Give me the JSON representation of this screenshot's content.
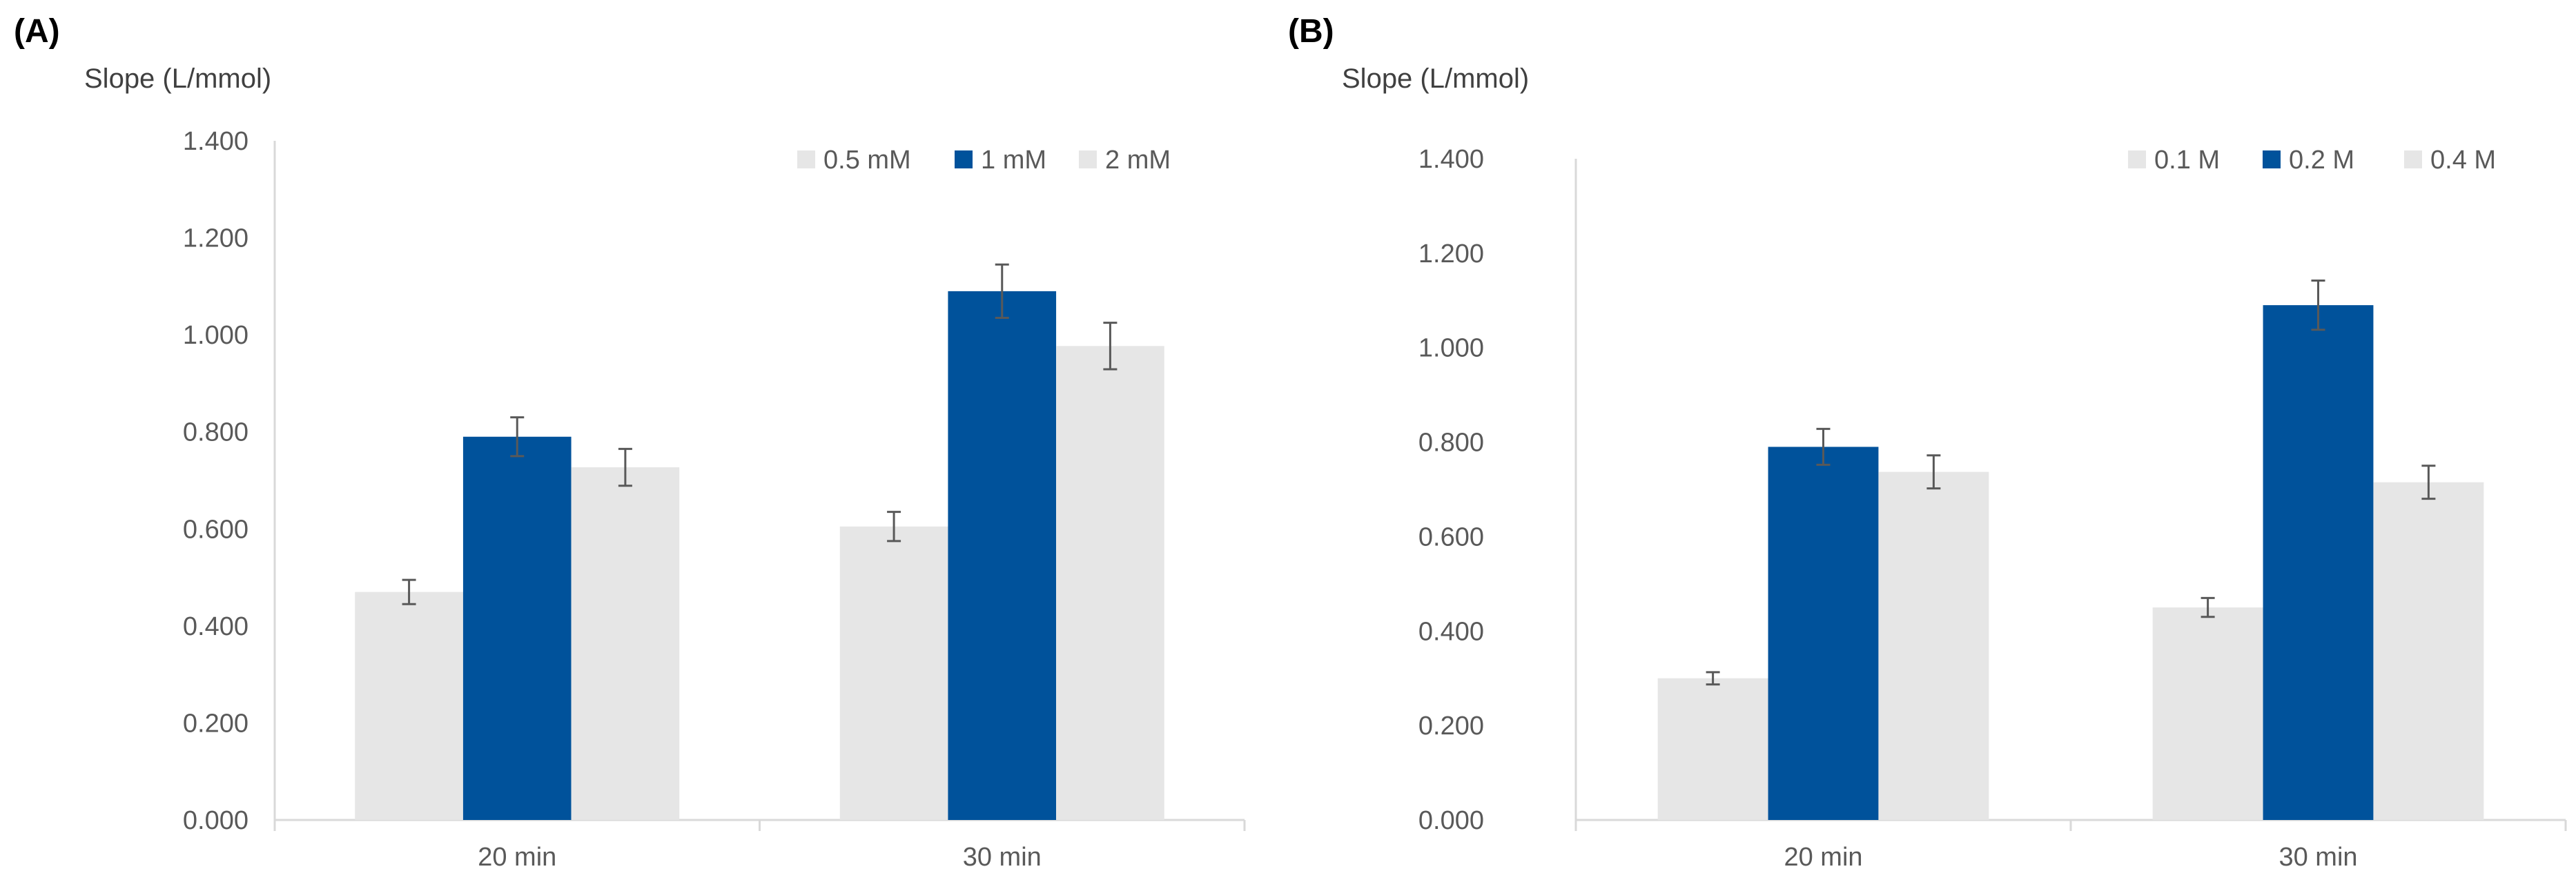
{
  "chart_data": [
    {
      "panel_label": "(A)",
      "type": "bar",
      "ylabel": "Slope (L/mmol)",
      "xlabel": "",
      "ylim": [
        0,
        1.4
      ],
      "yticks": [
        "0.000",
        "0.200",
        "0.400",
        "0.600",
        "0.800",
        "1.000",
        "1.200",
        "1.400"
      ],
      "ytick_values": [
        0,
        0.2,
        0.4,
        0.6,
        0.8,
        1.0,
        1.2,
        1.4
      ],
      "categories": [
        "20 min",
        "30 min"
      ],
      "legend_position": "top-right",
      "series": [
        {
          "name": "0.5 mM",
          "color": "#e6e6e6",
          "values": [
            0.47,
            0.605
          ],
          "errors": [
            0.025,
            0.03
          ]
        },
        {
          "name": "1 mM",
          "color": "#00529b",
          "values": [
            0.79,
            1.09
          ],
          "errors": [
            0.04,
            0.055
          ]
        },
        {
          "name": "2 mM",
          "color": "#e6e6e6",
          "values": [
            0.727,
            0.977
          ],
          "errors": [
            0.038,
            0.048
          ]
        }
      ]
    },
    {
      "panel_label": "(B)",
      "type": "bar",
      "ylabel": "Slope (L/mmol)",
      "xlabel": "",
      "ylim": [
        0,
        1.4
      ],
      "yticks": [
        "0.000",
        "0.200",
        "0.400",
        "0.600",
        "0.800",
        "1.000",
        "1.200",
        "1.400"
      ],
      "ytick_values": [
        0,
        0.2,
        0.4,
        0.6,
        0.8,
        1.0,
        1.2,
        1.4
      ],
      "categories": [
        "20 min",
        "30 min"
      ],
      "legend_position": "top-right",
      "series": [
        {
          "name": "0.1 M",
          "color": "#e6e6e6",
          "values": [
            0.3,
            0.45
          ],
          "errors": [
            0.013,
            0.02
          ]
        },
        {
          "name": "0.2 M",
          "color": "#00529b",
          "values": [
            0.79,
            1.09
          ],
          "errors": [
            0.038,
            0.052
          ]
        },
        {
          "name": "0.4 M",
          "color": "#e6e6e6",
          "values": [
            0.737,
            0.715
          ],
          "errors": [
            0.035,
            0.035
          ]
        }
      ]
    }
  ],
  "colors": {
    "axis": "#d9d9d9",
    "errorbar": "#595959",
    "tick_text": "#595959"
  }
}
